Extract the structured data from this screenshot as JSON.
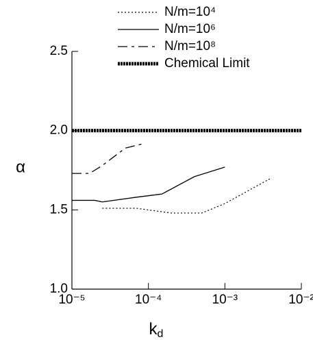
{
  "chart_data": {
    "type": "line",
    "x_label": {
      "base": "k",
      "subscript": "d"
    },
    "y_label": "α",
    "log_x": true,
    "xlim": [
      1e-05,
      0.01
    ],
    "xticks": [
      {
        "value": 1e-05,
        "label": "10⁻⁵"
      },
      {
        "value": 0.0001,
        "label": "10⁻⁴"
      },
      {
        "value": 0.001,
        "label": "10⁻³"
      },
      {
        "value": 0.01,
        "label": "10⁻²"
      }
    ],
    "ylim": [
      1,
      2.5
    ],
    "yticks": [
      {
        "value": 1,
        "label": "1.0"
      },
      1.5,
      {
        "value": 2,
        "label": "2.0"
      },
      2.5
    ],
    "legend_position": "top-right",
    "series": [
      {
        "name": "N/m=10⁴",
        "color": "#000000",
        "dash": "dotted",
        "x": [
          2.5e-05,
          7e-05,
          0.0002,
          0.0005,
          0.001,
          0.004
        ],
        "values": [
          1.51,
          1.51,
          1.48,
          1.48,
          1.54,
          1.7
        ]
      },
      {
        "name": "N/m=10⁶",
        "color": "#000000",
        "dash": "solid",
        "x": [
          1e-05,
          2e-05,
          2.5e-05,
          7e-05,
          0.00015,
          0.0004,
          0.001
        ],
        "values": [
          1.56,
          1.56,
          1.55,
          1.58,
          1.6,
          1.71,
          1.77
        ]
      },
      {
        "name": "N/m=10⁸",
        "color": "#000000",
        "dash": "dashed",
        "x": [
          1e-05,
          1.7e-05,
          2.5e-05,
          5e-05,
          9e-05
        ],
        "values": [
          1.73,
          1.73,
          1.78,
          1.89,
          1.92
        ]
      },
      {
        "name": "Chemical Limit",
        "color": "#000000",
        "dash": "thick",
        "x": [
          1e-05,
          0.01
        ],
        "values": [
          2,
          2
        ]
      }
    ]
  }
}
